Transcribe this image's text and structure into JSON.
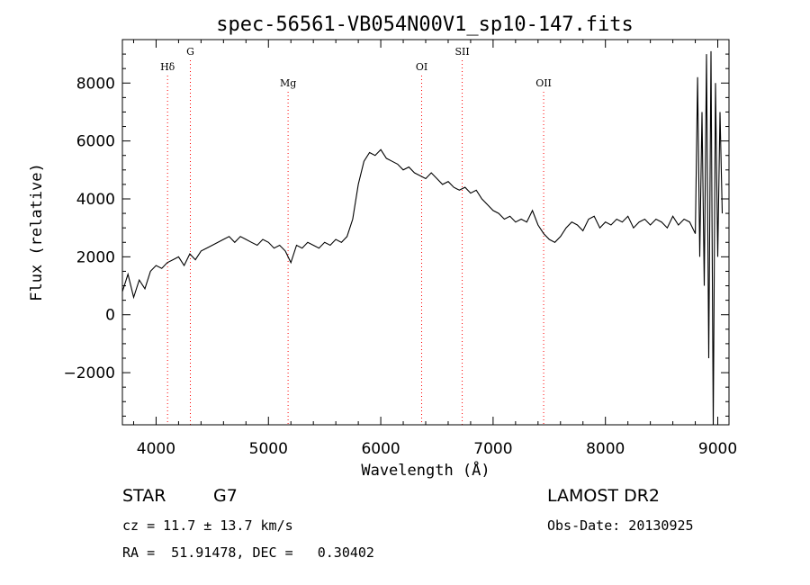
{
  "chart_data": {
    "type": "line",
    "title": "spec-56561-VB054N00V1_sp10-147.fits",
    "xlabel": "Wavelength (Å)",
    "ylabel": "Flux (relative)",
    "xlim": [
      3700,
      9100
    ],
    "ylim": [
      -3800,
      9500
    ],
    "xticks": [
      4000,
      5000,
      6000,
      7000,
      8000,
      9000
    ],
    "yticks": [
      -2000,
      0,
      2000,
      4000,
      6000,
      8000
    ],
    "xtick_labels": [
      "4000",
      "5000",
      "6000",
      "7000",
      "8000",
      "9000"
    ],
    "ytick_labels": [
      "−2000",
      "0",
      "2000",
      "4000",
      "6000",
      "8000"
    ],
    "grid": false,
    "series": [
      {
        "x": [
          3700,
          3750,
          3800,
          3850,
          3900,
          3950,
          4000,
          4050,
          4100,
          4150,
          4200,
          4250,
          4300,
          4350,
          4400,
          4450,
          4500,
          4550,
          4600,
          4650,
          4700,
          4750,
          4800,
          4850,
          4900,
          4950,
          5000,
          5050,
          5100,
          5150,
          5200,
          5250,
          5300,
          5350,
          5400,
          5450,
          5500,
          5550,
          5600,
          5650,
          5700,
          5750,
          5800,
          5850,
          5900,
          5950,
          6000,
          6050,
          6100,
          6150,
          6200,
          6250,
          6300,
          6350,
          6400,
          6450,
          6500,
          6550,
          6600,
          6650,
          6700,
          6750,
          6800,
          6850,
          6900,
          6950,
          7000,
          7050,
          7100,
          7150,
          7200,
          7250,
          7300,
          7350,
          7400,
          7450,
          7500,
          7550,
          7600,
          7650,
          7700,
          7750,
          7800,
          7850,
          7900,
          7950,
          8000,
          8050,
          8100,
          8150,
          8200,
          8250,
          8300,
          8350,
          8400,
          8450,
          8500,
          8550,
          8600,
          8650,
          8700,
          8750,
          8800,
          8820,
          8840,
          8860,
          8880,
          8900,
          8920,
          8940,
          8960,
          8980,
          9000,
          9020,
          9040
        ],
        "y": [
          800,
          1400,
          600,
          1200,
          900,
          1500,
          1700,
          1600,
          1800,
          1900,
          2000,
          1700,
          2100,
          1900,
          2200,
          2300,
          2400,
          2500,
          2600,
          2700,
          2500,
          2700,
          2600,
          2500,
          2400,
          2600,
          2500,
          2300,
          2400,
          2200,
          1800,
          2400,
          2300,
          2500,
          2400,
          2300,
          2500,
          2400,
          2600,
          2500,
          2700,
          3300,
          4500,
          5300,
          5600,
          5500,
          5700,
          5400,
          5300,
          5200,
          5000,
          5100,
          4900,
          4800,
          4700,
          4900,
          4700,
          4500,
          4600,
          4400,
          4300,
          4400,
          4200,
          4300,
          4000,
          3800,
          3600,
          3500,
          3300,
          3400,
          3200,
          3300,
          3200,
          3600,
          3100,
          2800,
          2600,
          2500,
          2700,
          3000,
          3200,
          3100,
          2900,
          3300,
          3400,
          3000,
          3200,
          3100,
          3300,
          3200,
          3400,
          3000,
          3200,
          3300,
          3100,
          3300,
          3200,
          3000,
          3400,
          3100,
          3300,
          3200,
          2800,
          8200,
          2000,
          7000,
          1000,
          9000,
          -1500,
          9100,
          -3800,
          8000,
          2000,
          7000,
          3500
        ]
      }
    ],
    "line_markers": [
      {
        "label": "Hδ",
        "x": 4102,
        "row": "low"
      },
      {
        "label": "G",
        "x": 4305,
        "row": "high"
      },
      {
        "label": "Mg",
        "x": 5175,
        "row": "lower"
      },
      {
        "label": "OI",
        "x": 6364,
        "row": "low"
      },
      {
        "label": "SII",
        "x": 6725,
        "row": "high"
      },
      {
        "label": "OII",
        "x": 7450,
        "row": "lower"
      }
    ],
    "colors": {
      "spectrum": "#000000",
      "marker_line": "#ff0000",
      "background": "#ffffff",
      "axis": "#000000"
    }
  },
  "info": {
    "class_label": "STAR",
    "subclass": "G7",
    "survey": "LAMOST DR2",
    "cz": "cz = 11.7 ± 13.7 km/s",
    "obs_date": "Obs-Date: 20130925",
    "coords": "RA =  51.91478, DEC =   0.30402"
  }
}
